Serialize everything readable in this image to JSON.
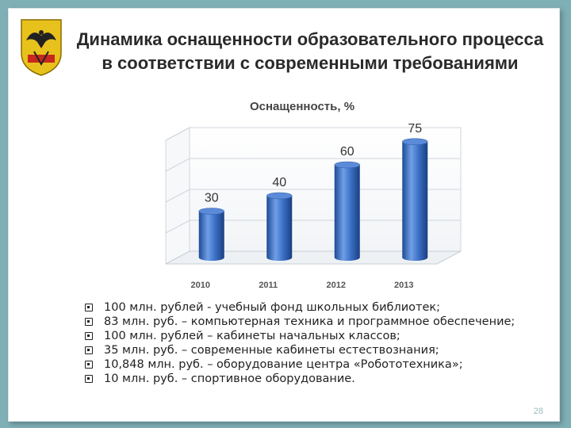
{
  "slide": {
    "title_line1": "Динамика оснащенности образовательного процесса",
    "title_line2": "в соответствии с современными требованиями",
    "page_number": "28"
  },
  "colors": {
    "bar": "#3a6fc4",
    "bar_light": "#6f9fe6",
    "bar_dark": "#1e4a95",
    "background": "#7fb0b6"
  },
  "chart_data": {
    "type": "bar",
    "title": "Оснащенность, %",
    "categories": [
      "2010",
      "2011",
      "2012",
      "2013"
    ],
    "values": [
      30,
      40,
      60,
      75
    ],
    "data_labels": [
      "30",
      "40",
      "60",
      "75"
    ],
    "ylim": [
      0,
      80
    ],
    "grid": true,
    "style": "3d-cylinder"
  },
  "bullets": [
    "100 млн. рублей - учебный фонд школьных библиотек;",
    "83 млн. руб. – компьютерная техника и программное обеспечение;",
    "100 млн. рублей – кабинеты начальных классов;",
    "35 млн. руб. – современные кабинеты естествознания;",
    "10,848 млн. руб. – оборудование центра «Робототехника»;",
    "10 млн. руб. – спортивное оборудование."
  ]
}
